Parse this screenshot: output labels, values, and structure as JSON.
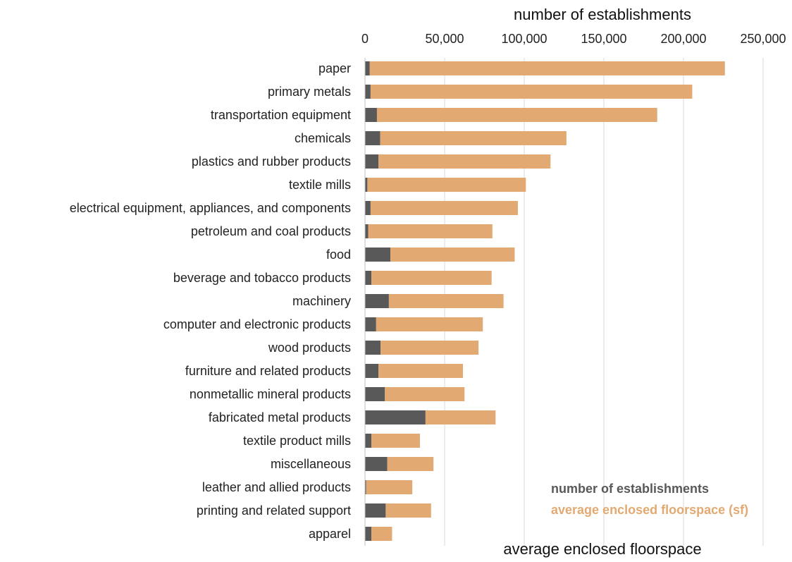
{
  "chart_data": {
    "type": "bar",
    "orientation": "horizontal",
    "stacked": true,
    "categories": [
      "paper",
      "primary metals",
      "transportation equipment",
      "chemicals",
      "plastics and rubber products",
      "textile mills",
      "electrical equipment, appliances, and components",
      "petroleum and coal products",
      "food",
      "beverage and tobacco products",
      "machinery",
      "computer and electronic products",
      "wood products",
      "furniture and related products",
      "nonmetallic mineral products",
      "fabricated metal products",
      "textile product mills",
      "miscellaneous",
      "leather and allied products",
      "printing and related support",
      "apparel"
    ],
    "series": [
      {
        "name": "number of establishments",
        "color": "#595959",
        "values": [
          3000,
          3500,
          7500,
          9500,
          8500,
          1500,
          3500,
          2000,
          16000,
          4000,
          15000,
          7000,
          9800,
          8500,
          12500,
          38000,
          4000,
          14000,
          700,
          13000,
          4000
        ]
      },
      {
        "name": "average enclosed floorspace (sf)",
        "color": "#E2AA72",
        "values": [
          223000,
          202000,
          176000,
          117000,
          108000,
          99500,
          92500,
          78000,
          78000,
          75500,
          72000,
          67000,
          61500,
          53000,
          50000,
          44000,
          30500,
          29000,
          29000,
          28500,
          13000
        ]
      }
    ],
    "x_axis": {
      "title": "number of establishments",
      "position": "top",
      "range": [
        0,
        250000
      ],
      "ticks": [
        0,
        50000,
        100000,
        150000,
        200000,
        250000
      ],
      "tick_labels": [
        "0",
        "50,000",
        "100,000",
        "150,000",
        "200,000",
        "250,000"
      ]
    },
    "secondary_axis_title": "average enclosed floorspace",
    "grid": "vertical",
    "legend": {
      "placement": "bottom-right",
      "entries": [
        "number of establishments",
        "average enclosed floorspace (sf)"
      ]
    }
  }
}
